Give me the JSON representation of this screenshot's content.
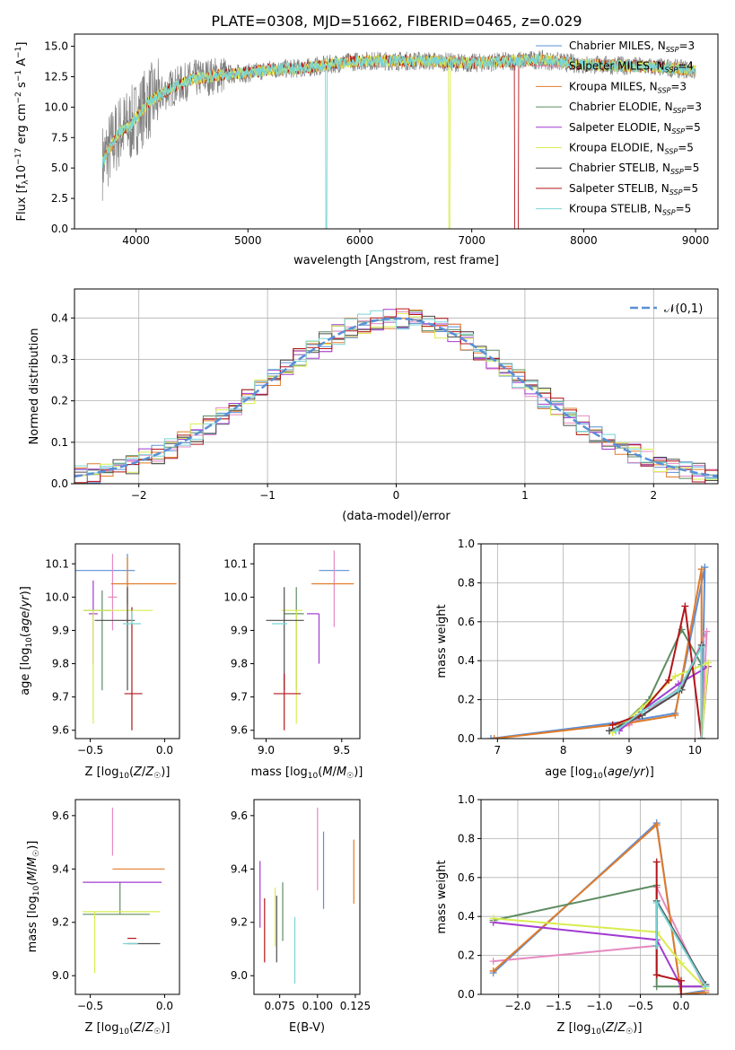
{
  "title": "PLATE=0308, MJD=51662, FIBERID=0465, z=0.029",
  "colors": {
    "Chabrier MILES": "#5b8fd6",
    "Salpeter MILES": "#e58ac0",
    "Kroupa MILES": "#e07b2a",
    "Chabrier ELODIE": "#5e8c62",
    "Salpeter ELODIE": "#a23ad1",
    "Kroupa ELODIE": "#d9ec50",
    "Chabrier STELIB": "#4d4d4d",
    "Salpeter STELIB": "#b3161b",
    "Kroupa STELIB": "#79d4d4",
    "spectrum": "#808080"
  },
  "chart_data": [
    {
      "type": "line",
      "title": "PLATE=0308, MJD=51662, FIBERID=0465, z=0.029",
      "xlabel": "wavelength [Angstrom, rest frame]",
      "ylabel": "Flux [f_λ 10^-17 erg cm^-2 s^-1 A^-1]",
      "xlim": [
        3450,
        9200
      ],
      "ylim": [
        0,
        16
      ],
      "xticks": [
        4000,
        5000,
        6000,
        7000,
        8000,
        9000
      ],
      "yticks": [
        0.0,
        2.5,
        5.0,
        7.5,
        10.0,
        12.5,
        15.0
      ],
      "legend_position": "upper right",
      "legend": [
        {
          "base": "Chabrier MILES, N",
          "n": "=3"
        },
        {
          "base": "Salpeter MILES, N",
          "n": "=4"
        },
        {
          "base": "Kroupa MILES, N",
          "n": "=3"
        },
        {
          "base": "Chabrier ELODIE, N",
          "n": "=3"
        },
        {
          "base": "Salpeter ELODIE, N",
          "n": "=5"
        },
        {
          "base": "Kroupa ELODIE, N",
          "n": "=5"
        },
        {
          "base": "Chabrier STELIB, N",
          "n": "=5"
        },
        {
          "base": "Salpeter STELIB, N",
          "n": "=5"
        },
        {
          "base": "Kroupa STELIB, N",
          "n": "=5"
        }
      ],
      "continuum": {
        "x": [
          3700,
          3850,
          3950,
          4100,
          4300,
          4500,
          4800,
          5000,
          5200,
          5500,
          5800,
          6000,
          6300,
          6600,
          7000,
          7200,
          7400,
          7600,
          8000,
          8400,
          8800,
          9000
        ],
        "y": [
          5.5,
          8.0,
          8.5,
          10.3,
          11.5,
          12.3,
          12.7,
          12.8,
          13.1,
          13.2,
          13.6,
          13.8,
          13.8,
          13.8,
          13.6,
          13.7,
          13.8,
          13.9,
          13.5,
          13.4,
          13.2,
          13.0
        ]
      }
    },
    {
      "type": "line",
      "xlabel": "(data-model)/error",
      "ylabel": "Normed distribution",
      "xlim": [
        -2.5,
        2.5
      ],
      "ylim": [
        0,
        0.47
      ],
      "xticks": [
        -2,
        -1,
        0,
        1,
        2
      ],
      "yticks": [
        0.0,
        0.1,
        0.2,
        0.3,
        0.4
      ],
      "grid": true,
      "legend_position": "upper right",
      "gaussian_label": "𝒩(0,1)",
      "bins": {
        "start": -2.5,
        "width": 0.1,
        "count": 50
      }
    },
    {
      "type": "scatter",
      "xlabel": "Z [log10(Z/Z☉)]",
      "ylabel": "age  [log10(age/yr)]",
      "xlim": [
        -0.6,
        0.1
      ],
      "ylim": [
        9.575,
        10.16
      ],
      "xticks": [
        "-0.5",
        "0.0"
      ],
      "yticks": [
        "9.6",
        "9.7",
        "9.8",
        "9.9",
        "10.0",
        "10.1"
      ],
      "points": [
        {
          "series": "Chabrier MILES",
          "x": -0.25,
          "y": 10.08,
          "xerr": [
            0.35,
            0.05
          ],
          "yerr": [
            0.1,
            0.05
          ]
        },
        {
          "series": "Salpeter MILES",
          "x": -0.35,
          "y": 10.0,
          "xerr": [
            0.03,
            0.03
          ],
          "yerr": [
            0.1,
            0.13
          ]
        },
        {
          "series": "Kroupa MILES",
          "x": -0.25,
          "y": 10.04,
          "xerr": [
            0.11,
            0.33
          ],
          "yerr": [
            0.12,
            0.08
          ]
        },
        {
          "series": "Chabrier ELODIE",
          "x": -0.42,
          "y": 9.96,
          "xerr": [
            0.12,
            0.06
          ],
          "yerr": [
            0.24,
            0.06
          ]
        },
        {
          "series": "Salpeter ELODIE",
          "x": -0.48,
          "y": 9.95,
          "xerr": [
            0.03,
            0.03
          ],
          "yerr": [
            0.15,
            0.1
          ]
        },
        {
          "series": "Kroupa ELODIE",
          "x": -0.48,
          "y": 9.96,
          "xerr": [
            0.07,
            0.4
          ],
          "yerr": [
            0.34,
            0.0
          ]
        },
        {
          "series": "Chabrier STELIB",
          "x": -0.25,
          "y": 9.93,
          "xerr": [
            0.22,
            0.05
          ],
          "yerr": [
            0.21,
            0.1
          ]
        },
        {
          "series": "Salpeter STELIB",
          "x": -0.22,
          "y": 9.71,
          "xerr": [
            0.05,
            0.07
          ],
          "yerr": [
            0.11,
            0.26
          ]
        },
        {
          "series": "Kroupa STELIB",
          "x": -0.22,
          "y": 9.92,
          "xerr": [
            0.06,
            0.06
          ],
          "yerr": [
            0.0,
            0.04
          ]
        }
      ]
    },
    {
      "type": "scatter",
      "xlabel": "mass [log10(M/M☉)]",
      "ylabel": "",
      "xlim": [
        8.92,
        9.62
      ],
      "ylim": [
        9.575,
        10.16
      ],
      "xticks": [
        "9.0",
        "9.5"
      ],
      "yticks": [
        "9.6",
        "9.7",
        "9.8",
        "9.9",
        "10.0",
        "10.1"
      ],
      "points": [
        {
          "series": "Chabrier MILES",
          "x": 9.45,
          "y": 10.08,
          "xerr": [
            0.1,
            0.1
          ],
          "yerr": [
            0.0,
            0.0
          ]
        },
        {
          "series": "Salpeter MILES",
          "x": 9.45,
          "y": 10.04,
          "xerr": [
            0.0,
            0.0
          ],
          "yerr": [
            0.13,
            0.1
          ]
        },
        {
          "series": "Kroupa MILES",
          "x": 9.4,
          "y": 10.04,
          "xerr": [
            0.1,
            0.18
          ],
          "yerr": [
            0.0,
            0.0
          ]
        },
        {
          "series": "Chabrier ELODIE",
          "x": 9.2,
          "y": 9.95,
          "xerr": [
            0.08,
            0.05
          ],
          "yerr": [
            0.23,
            0.08
          ]
        },
        {
          "series": "Salpeter ELODIE",
          "x": 9.35,
          "y": 9.95,
          "xerr": [
            0.08,
            0.0
          ],
          "yerr": [
            0.15,
            0.0
          ]
        },
        {
          "series": "Kroupa ELODIE",
          "x": 9.2,
          "y": 9.96,
          "xerr": [
            0.1,
            0.04
          ],
          "yerr": [
            0.34,
            0.0
          ]
        },
        {
          "series": "Chabrier STELIB",
          "x": 9.12,
          "y": 9.93,
          "xerr": [
            0.12,
            0.13
          ],
          "yerr": [
            0.21,
            0.1
          ]
        },
        {
          "series": "Salpeter STELIB",
          "x": 9.12,
          "y": 9.71,
          "xerr": [
            0.07,
            0.11
          ],
          "yerr": [
            0.11,
            0.06
          ]
        },
        {
          "series": "Kroupa STELIB",
          "x": 9.12,
          "y": 9.92,
          "xerr": [
            0.08,
            0.02
          ],
          "yerr": [
            0.0,
            0.0
          ]
        }
      ]
    },
    {
      "type": "line",
      "xlabel": "age  [log10(age/yr)]",
      "ylabel": "mass weight",
      "xlim": [
        6.75,
        10.35
      ],
      "ylim": [
        0,
        1
      ],
      "xticks": [
        "7",
        "8",
        "9",
        "10"
      ],
      "yticks": [
        "0.0",
        "0.2",
        "0.4",
        "0.6",
        "0.8",
        "1.0"
      ],
      "grid": true,
      "series": [
        {
          "name": "Chabrier MILES",
          "x": [
            6.9,
            9.0,
            9.7,
            10.15,
            10.1
          ],
          "y": [
            0.0,
            0.09,
            0.13,
            0.88,
            0.0
          ]
        },
        {
          "name": "Salpeter MILES",
          "x": [
            8.7,
            9.0,
            9.8,
            10.18,
            10.1
          ],
          "y": [
            0.04,
            0.07,
            0.27,
            0.55,
            0.0
          ]
        },
        {
          "name": "Kroupa MILES",
          "x": [
            6.95,
            9.0,
            9.7,
            10.1,
            10.1
          ],
          "y": [
            0.0,
            0.08,
            0.12,
            0.87,
            0.0
          ]
        },
        {
          "name": "Chabrier ELODIE",
          "x": [
            8.8,
            9.3,
            9.8,
            10.1,
            10.1
          ],
          "y": [
            0.04,
            0.2,
            0.56,
            0.38,
            0.0
          ]
        },
        {
          "name": "Salpeter ELODIE",
          "x": [
            8.85,
            9.3,
            9.75,
            10.2,
            10.1
          ],
          "y": [
            0.04,
            0.17,
            0.28,
            0.37,
            0.0
          ]
        },
        {
          "name": "Kroupa ELODIE",
          "x": [
            8.75,
            9.2,
            9.7,
            10.2,
            10.1
          ],
          "y": [
            0.03,
            0.16,
            0.32,
            0.39,
            0.0
          ]
        },
        {
          "name": "Chabrier STELIB",
          "x": [
            8.7,
            9.2,
            9.8,
            10.1,
            10.1
          ],
          "y": [
            0.04,
            0.12,
            0.25,
            0.48,
            0.0
          ]
        },
        {
          "name": "Salpeter STELIB",
          "x": [
            8.75,
            9.15,
            9.6,
            9.85,
            10.1
          ],
          "y": [
            0.07,
            0.12,
            0.3,
            0.68,
            0.0
          ]
        },
        {
          "name": "Kroupa STELIB",
          "x": [
            8.8,
            9.2,
            9.75,
            10.1,
            10.1
          ],
          "y": [
            0.04,
            0.14,
            0.25,
            0.47,
            0.0
          ]
        }
      ]
    },
    {
      "type": "scatter",
      "xlabel": "Z [log10(Z/Z☉)]",
      "ylabel": "mass [log10(M/M☉)]",
      "xlim": [
        -0.6,
        0.1
      ],
      "ylim": [
        8.93,
        9.66
      ],
      "xticks": [
        "-0.5",
        "0.0"
      ],
      "yticks": [
        "9.0",
        "9.2",
        "9.4",
        "9.6"
      ],
      "points": [
        {
          "series": "Chabrier MILES",
          "x": -0.35,
          "y": 9.45,
          "xerr": [
            0.0,
            0.0
          ],
          "yerr": [
            0.0,
            0.0
          ]
        },
        {
          "series": "Salpeter MILES",
          "x": -0.35,
          "y": 9.45,
          "xerr": [
            0.0,
            0.0
          ],
          "yerr": [
            0.0,
            0.18
          ]
        },
        {
          "series": "Kroupa MILES",
          "x": -0.2,
          "y": 9.4,
          "xerr": [
            0.15,
            0.2
          ],
          "yerr": [
            0.0,
            0.0
          ]
        },
        {
          "series": "Chabrier ELODIE",
          "x": -0.3,
          "y": 9.23,
          "xerr": [
            0.25,
            0.2
          ],
          "yerr": [
            0.0,
            0.12
          ]
        },
        {
          "series": "Salpeter ELODIE",
          "x": -0.45,
          "y": 9.35,
          "xerr": [
            0.1,
            0.43
          ],
          "yerr": [
            0.0,
            0.0
          ]
        },
        {
          "series": "Kroupa ELODIE",
          "x": -0.47,
          "y": 9.24,
          "xerr": [
            0.08,
            0.44
          ],
          "yerr": [
            0.23,
            0.0
          ]
        },
        {
          "series": "Chabrier STELIB",
          "x": -0.25,
          "y": 9.12,
          "xerr": [
            0.0,
            0.22
          ],
          "yerr": [
            0.0,
            0.0
          ]
        },
        {
          "series": "Salpeter STELIB",
          "x": -0.22,
          "y": 9.14,
          "xerr": [
            0.03,
            0.03
          ],
          "yerr": [
            0.0,
            0.0
          ]
        },
        {
          "series": "Kroupa STELIB",
          "x": -0.22,
          "y": 9.12,
          "xerr": [
            0.06,
            0.04
          ],
          "yerr": [
            0.0,
            0.0
          ]
        }
      ]
    },
    {
      "type": "scatter",
      "xlabel": "E(B-V)",
      "ylabel": "",
      "xlim": [
        0.058,
        0.128
      ],
      "ylim": [
        8.93,
        9.66
      ],
      "xticks": [
        "0.075",
        "0.100",
        "0.125"
      ],
      "yticks": [
        "9.0",
        "9.2",
        "9.4",
        "9.6"
      ],
      "points": [
        {
          "series": "Chabrier MILES",
          "x": 0.104,
          "y": 9.4,
          "xerr": [
            0.0,
            0.0
          ],
          "yerr": [
            0.15,
            0.14
          ]
        },
        {
          "series": "Salpeter MILES",
          "x": 0.1,
          "y": 9.5,
          "xerr": [
            0.0,
            0.0
          ],
          "yerr": [
            0.18,
            0.13
          ]
        },
        {
          "series": "Kroupa MILES",
          "x": 0.124,
          "y": 9.39,
          "xerr": [
            0.0,
            0.0
          ],
          "yerr": [
            0.12,
            0.12
          ]
        },
        {
          "series": "Chabrier ELODIE",
          "x": 0.077,
          "y": 9.22,
          "xerr": [
            0.0,
            0.0
          ],
          "yerr": [
            0.09,
            0.13
          ]
        },
        {
          "series": "Salpeter ELODIE",
          "x": 0.062,
          "y": 9.3,
          "xerr": [
            0.0,
            0.0
          ],
          "yerr": [
            0.12,
            0.13
          ]
        },
        {
          "series": "Kroupa ELODIE",
          "x": 0.072,
          "y": 9.22,
          "xerr": [
            0.0,
            0.0
          ],
          "yerr": [
            0.11,
            0.11
          ]
        },
        {
          "series": "Chabrier STELIB",
          "x": 0.073,
          "y": 9.2,
          "xerr": [
            0.0,
            0.0
          ],
          "yerr": [
            0.15,
            0.1
          ]
        },
        {
          "series": "Salpeter STELIB",
          "x": 0.065,
          "y": 9.17,
          "xerr": [
            0.0,
            0.0
          ],
          "yerr": [
            0.12,
            0.12
          ]
        },
        {
          "series": "Kroupa STELIB",
          "x": 0.085,
          "y": 9.1,
          "xerr": [
            0.0,
            0.0
          ],
          "yerr": [
            0.13,
            0.12
          ]
        }
      ]
    },
    {
      "type": "line",
      "xlabel": "Z [log10(Z/Z☉)]",
      "ylabel": "mass weight",
      "xlim": [
        -2.45,
        0.45
      ],
      "ylim": [
        0,
        1
      ],
      "xticks": [
        "-2.0",
        "-1.5",
        "-1.0",
        "-0.5",
        "0.0"
      ],
      "yticks": [
        "0.0",
        "0.2",
        "0.4",
        "0.6",
        "0.8",
        "1.0"
      ],
      "grid": true,
      "series": [
        {
          "name": "Chabrier MILES",
          "x": [
            -2.3,
            -0.3,
            0.0,
            0.3
          ],
          "y": [
            0.11,
            0.88,
            0.0,
            0.02
          ]
        },
        {
          "name": "Salpeter MILES",
          "x": [
            -2.3,
            -0.3,
            -0.3,
            0.3
          ],
          "y": [
            0.17,
            0.25,
            0.55,
            0.02
          ]
        },
        {
          "name": "Kroupa MILES",
          "x": [
            -2.3,
            -0.3,
            0.0,
            0.3
          ],
          "y": [
            0.12,
            0.87,
            0.0,
            0.01
          ]
        },
        {
          "name": "Chabrier ELODIE",
          "x": [
            -2.3,
            -0.3,
            -0.3,
            0.3
          ],
          "y": [
            0.38,
            0.56,
            0.04,
            0.04
          ]
        },
        {
          "name": "Salpeter ELODIE",
          "x": [
            -2.3,
            -0.3,
            0.0,
            0.3
          ],
          "y": [
            0.37,
            0.28,
            0.04,
            0.04
          ]
        },
        {
          "name": "Kroupa ELODIE",
          "x": [
            -2.3,
            -0.3,
            0.0,
            0.3
          ],
          "y": [
            0.39,
            0.32,
            0.16,
            0.03
          ]
        },
        {
          "name": "Chabrier STELIB",
          "x": [
            -0.3,
            -0.3,
            0.3
          ],
          "y": [
            0.25,
            0.48,
            0.05
          ]
        },
        {
          "name": "Salpeter STELIB",
          "x": [
            -0.3,
            -0.3,
            0.0,
            0.0
          ],
          "y": [
            0.68,
            0.1,
            0.07,
            0.0
          ]
        },
        {
          "name": "Kroupa STELIB",
          "x": [
            -0.3,
            -0.3,
            0.3
          ],
          "y": [
            0.25,
            0.47,
            0.04
          ]
        }
      ]
    }
  ]
}
